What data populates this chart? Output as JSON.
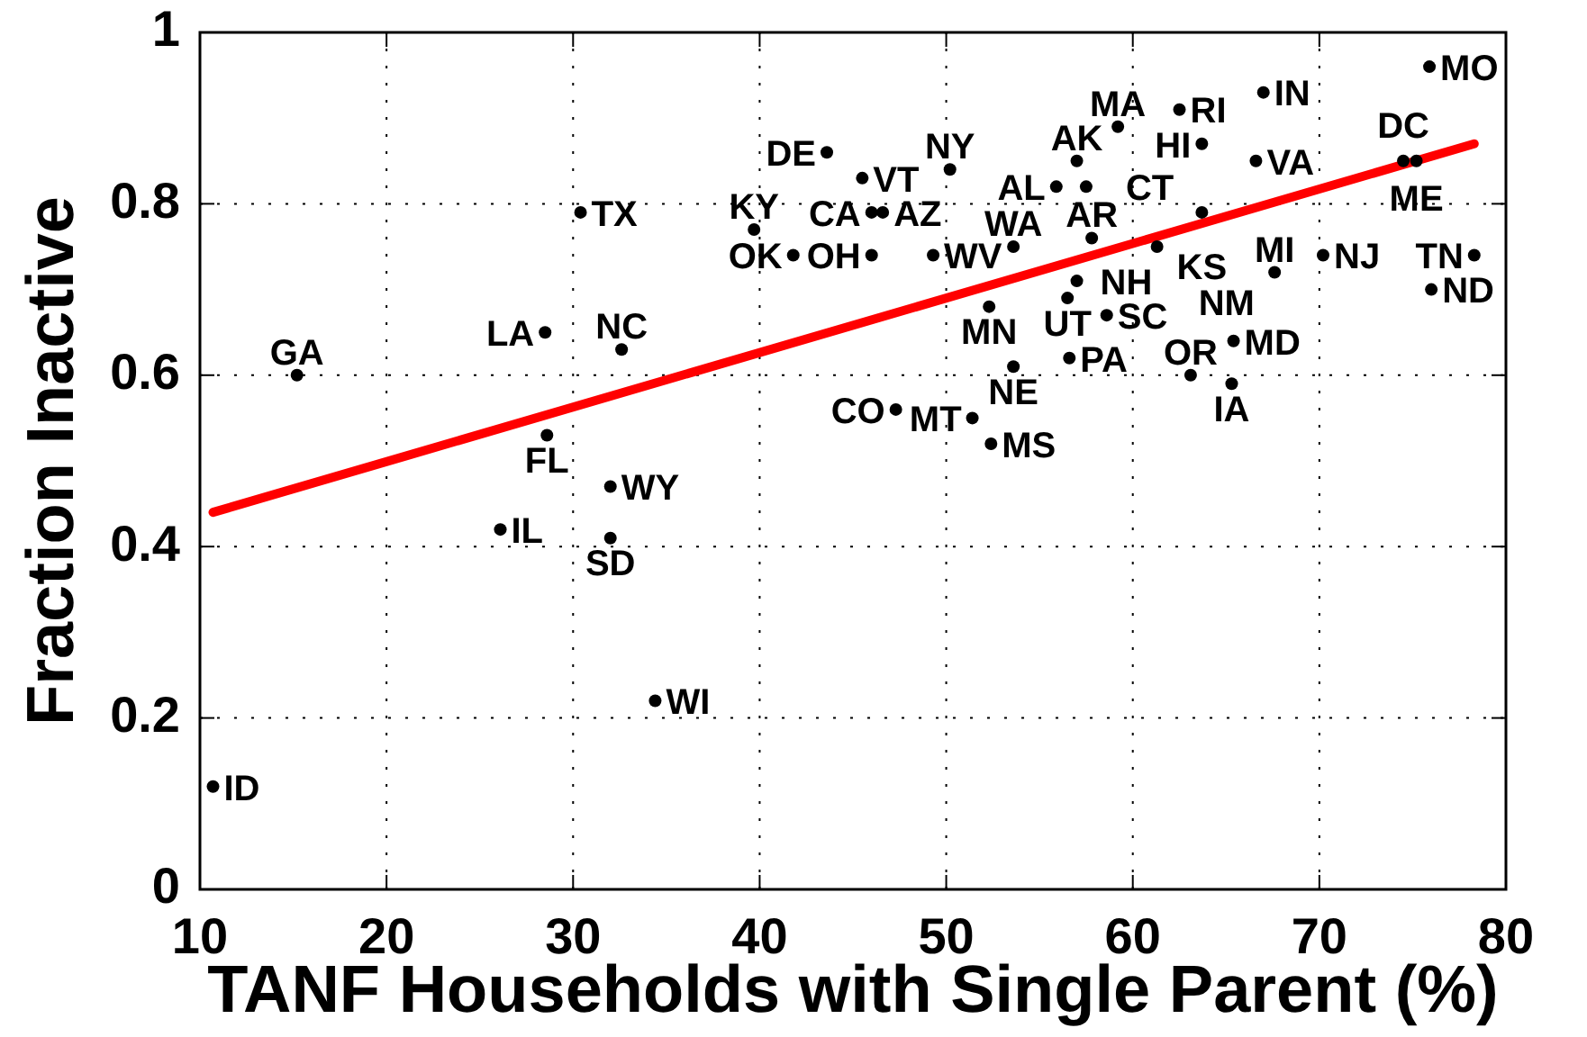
{
  "chart_data": {
    "type": "scatter",
    "xlabel": "TANF Households with Single Parent (%)",
    "ylabel": "Fraction Inactive",
    "xlim": [
      10,
      80
    ],
    "xticks": [
      10,
      20,
      30,
      40,
      50,
      60,
      70,
      80
    ],
    "ylim": [
      0,
      1
    ],
    "yticks": [
      0,
      0.2,
      0.4,
      0.6,
      0.8,
      1
    ],
    "grid": true,
    "series": [
      {
        "type": "scatter",
        "marker": "circle",
        "color": "#000000",
        "x": [
          10.7,
          15.2,
          26.1,
          28.5,
          28.6,
          30.4,
          32.0,
          32.0,
          32.6,
          34.4,
          39.7,
          41.8,
          43.6,
          46.0,
          46.0,
          45.5,
          46.6,
          47.3,
          49.3,
          50.2,
          51.4,
          52.3,
          52.4,
          53.6,
          53.6,
          55.9,
          56.5,
          56.6,
          59.2,
          57.0,
          57.0,
          57.8,
          57.5,
          58.6,
          61.3,
          62.5,
          63.1,
          63.7,
          63.7,
          65.3,
          65.4,
          66.6,
          67.0,
          67.6,
          70.2,
          74.5,
          75.2,
          76.0,
          75.9,
          78.3
        ],
        "values": [
          0.12,
          0.6,
          0.42,
          0.65,
          0.53,
          0.79,
          0.47,
          0.41,
          0.63,
          0.22,
          0.77,
          0.74,
          0.86,
          0.79,
          0.74,
          0.83,
          0.79,
          0.56,
          0.74,
          0.84,
          0.55,
          0.68,
          0.52,
          0.75,
          0.61,
          0.82,
          0.69,
          0.62,
          0.89,
          0.85,
          0.71,
          0.76,
          0.82,
          0.67,
          0.75,
          0.91,
          0.6,
          0.87,
          0.79,
          0.59,
          0.64,
          0.85,
          0.93,
          0.72,
          0.74,
          0.85,
          0.85,
          0.7,
          0.96,
          0.74
        ],
        "value_labels": [
          "ID",
          "GA",
          "IL",
          "LA",
          "FL",
          "TX",
          "WY",
          "SD",
          "NC",
          "WI",
          "KY",
          "OK",
          "DE",
          "CA",
          "OH",
          "VT",
          "AZ",
          "CO",
          "WV",
          "NY",
          "MT",
          "MN",
          "MS",
          "WA",
          "NE",
          "AL",
          "UT",
          "PA",
          "MA",
          "AK",
          "NH",
          "AR",
          "CT",
          "SC",
          "NM",
          "RI",
          "OR",
          "HI",
          "KS",
          "IA",
          "MD",
          "VA",
          "IN",
          "MI",
          "NJ",
          "DC",
          "ME",
          "ND",
          "MO",
          "TN"
        ]
      },
      {
        "type": "line",
        "color": "#ff0000",
        "x": [
          10.7,
          78.3
        ],
        "values": [
          0.44,
          0.87
        ]
      }
    ]
  }
}
